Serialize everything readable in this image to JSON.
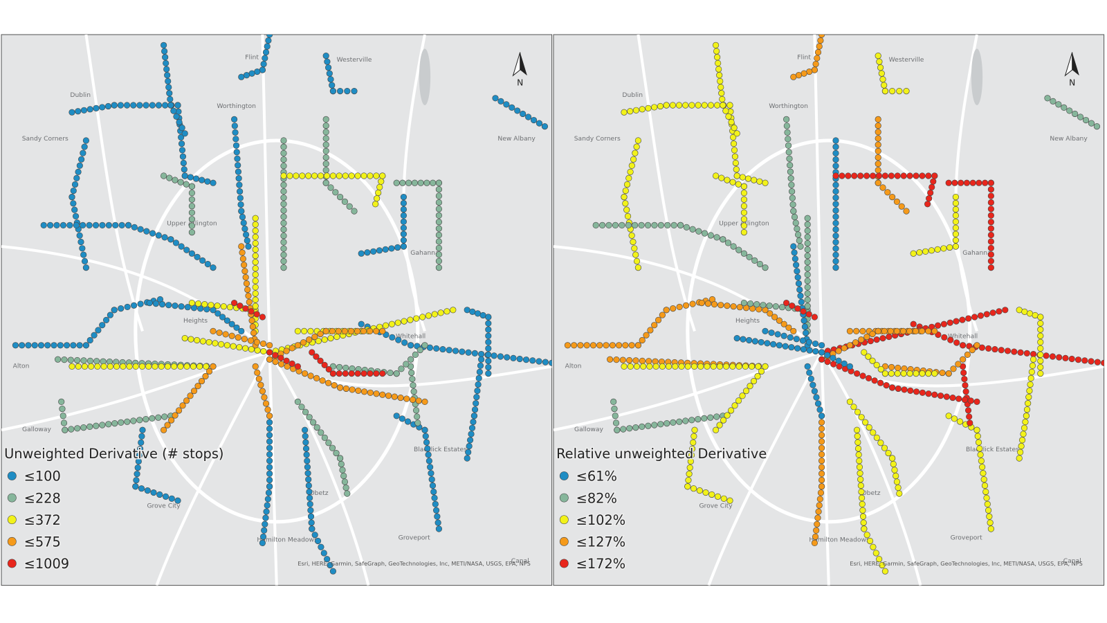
{
  "map": {
    "panels": [
      {
        "legend_title": "Unweighted Derivative (# stops)",
        "legend": [
          {
            "label": "≤100",
            "color": "#1f8dc4"
          },
          {
            "label": "≤228",
            "color": "#86b69b"
          },
          {
            "label": "≤372",
            "color": "#f2f21a"
          },
          {
            "label": "≤575",
            "color": "#f59a1a"
          },
          {
            "label": "≤1009",
            "color": "#e8261c"
          }
        ]
      },
      {
        "legend_title": "Relative unweighted Derivative",
        "legend": [
          {
            "label": "≤61%",
            "color": "#1f8dc4"
          },
          {
            "label": "≤82%",
            "color": "#86b69b"
          },
          {
            "label": "≤102%",
            "color": "#f2f21a"
          },
          {
            "label": "≤127%",
            "color": "#f59a1a"
          },
          {
            "label": "≤172%",
            "color": "#e8261c"
          }
        ]
      }
    ],
    "place_labels": [
      "Flint",
      "Westerville",
      "Dublin",
      "Worthington",
      "Sandy Corners",
      "New Albany",
      "Upper Arlington",
      "Gahanna",
      "Whitehall",
      "Alton",
      "Galloway",
      "Grove City",
      "Obetz",
      "Hamilton Meadows",
      "Groveport",
      "Blacklick Estates",
      "Heights",
      "Canal"
    ],
    "north_label": "N",
    "attribution": "Esri, HERE, Garmin, SafeGraph, GeoTechnologies, Inc, METI/NASA, USGS, EPA, NPS"
  }
}
